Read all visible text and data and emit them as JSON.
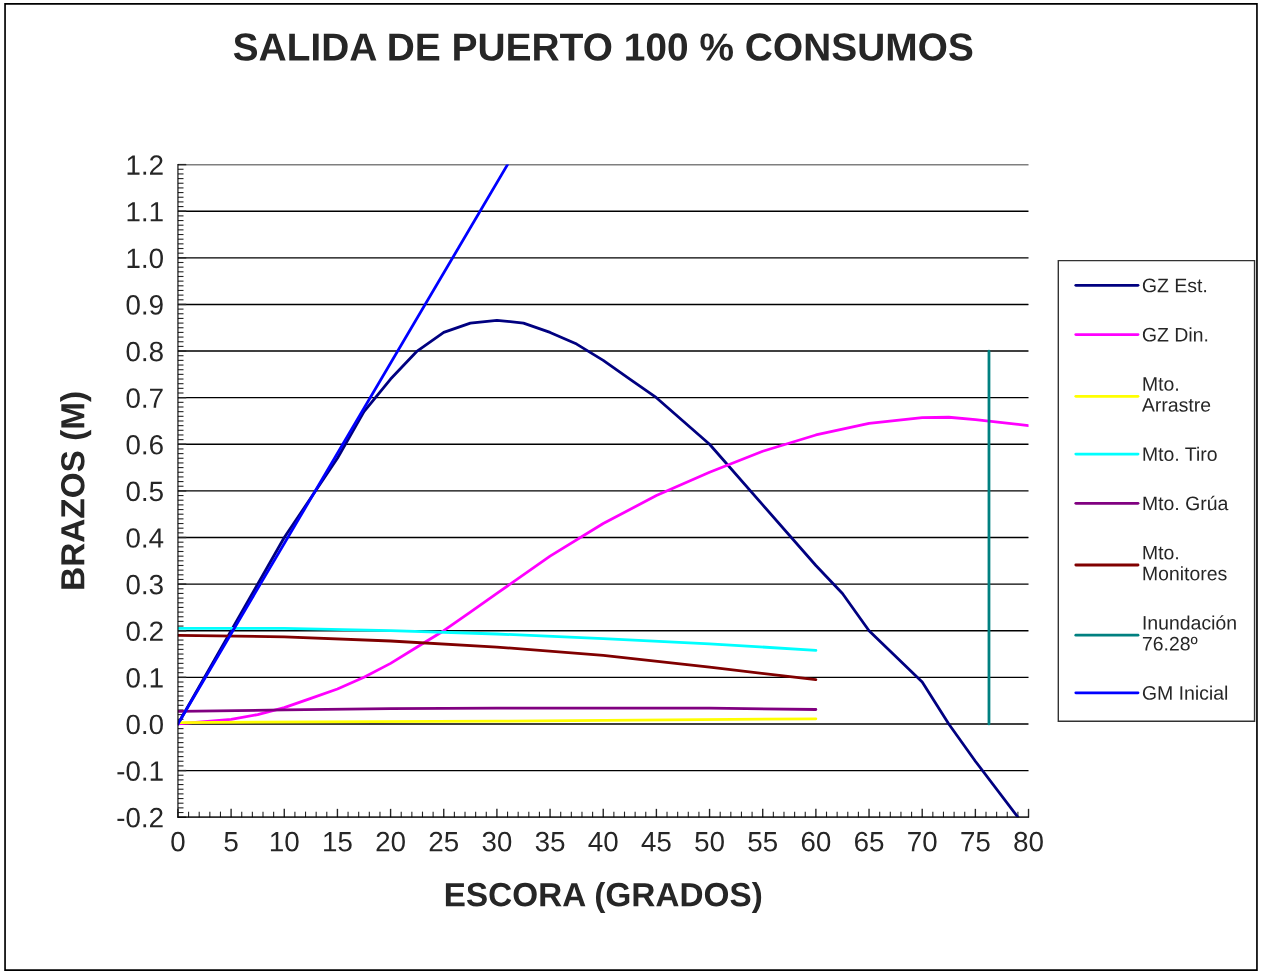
{
  "chart_data": {
    "type": "line",
    "title": "SALIDA DE PUERTO 100 % CONSUMOS",
    "xlabel": "ESCORA (GRADOS)",
    "ylabel": "BRAZOS (M)",
    "xlim": [
      0,
      80
    ],
    "xticks": [
      0,
      5,
      10,
      15,
      20,
      25,
      30,
      35,
      40,
      45,
      50,
      55,
      60,
      65,
      70,
      75,
      80
    ],
    "ylim": [
      -0.2,
      1.2
    ],
    "yticks": [
      -0.2,
      -0.1,
      {
        "value": 0,
        "label": "0.0"
      },
      0.1,
      0.2,
      0.3,
      0.4,
      0.5,
      0.6,
      0.7,
      0.8,
      0.9,
      {
        "value": 1,
        "label": "1.0"
      },
      1.1,
      1.2
    ],
    "grid": "y",
    "legend": "right",
    "line_style": "solid",
    "marker": "none",
    "series": [
      {
        "name": "GZ Est.",
        "color": "#000080",
        "x": [
          0,
          5,
          10,
          15,
          17.5,
          20,
          22.5,
          25,
          27.5,
          30,
          32.5,
          35,
          37.5,
          40,
          42.5,
          45,
          47.5,
          50,
          55,
          60,
          62.5,
          65,
          70,
          72.5,
          75,
          79
        ],
        "values": [
          0,
          0.2,
          0.4,
          0.57,
          0.67,
          0.74,
          0.8,
          0.84,
          0.86,
          0.866,
          0.86,
          0.84,
          0.815,
          0.78,
          0.74,
          0.7,
          0.65,
          0.6,
          0.47,
          0.34,
          0.28,
          0.2,
          0.09,
          0.0,
          -0.08,
          -0.2
        ]
      },
      {
        "name": "GZ Din.",
        "color": "#ff00ff",
        "x": [
          0,
          5,
          7.5,
          10,
          12.5,
          15,
          17.5,
          20,
          22.5,
          25,
          27.5,
          30,
          35,
          40,
          45,
          50,
          55,
          60,
          65,
          70,
          72.5,
          75,
          80
        ],
        "values": [
          0,
          0.01,
          0.02,
          0.035,
          0.055,
          0.075,
          0.1,
          0.13,
          0.165,
          0.2,
          0.24,
          0.28,
          0.36,
          0.43,
          0.49,
          0.54,
          0.585,
          0.62,
          0.645,
          0.657,
          0.658,
          0.653,
          0.64
        ]
      },
      {
        "name": "Mto.\nArrastre",
        "color": "#ffff00",
        "x": [
          0,
          30,
          60
        ],
        "values": [
          0.003,
          0.006,
          0.011
        ]
      },
      {
        "name": "Mto. Tiro",
        "color": "#00ffff",
        "x": [
          0,
          10,
          20,
          30,
          40,
          50,
          60
        ],
        "values": [
          0.205,
          0.205,
          0.2,
          0.193,
          0.183,
          0.172,
          0.158
        ]
      },
      {
        "name": "Mto. Grúa",
        "color": "#800080",
        "x": [
          0,
          10,
          20,
          30,
          40,
          50,
          60
        ],
        "values": [
          0.027,
          0.03,
          0.033,
          0.034,
          0.034,
          0.034,
          0.031
        ]
      },
      {
        "name": "Mto.\nMonitores",
        "color": "#800000",
        "x": [
          0,
          10,
          20,
          30,
          40,
          50,
          60
        ],
        "values": [
          0.19,
          0.187,
          0.178,
          0.165,
          0.147,
          0.122,
          0.095
        ]
      },
      {
        "name": "Inundación\n76.28º",
        "color": "#008080",
        "x": [
          76.28,
          76.28
        ],
        "values": [
          0,
          0.8
        ]
      },
      {
        "name": "GM Inicial",
        "color": "#0000ff",
        "x": [
          0,
          31
        ],
        "values": [
          0,
          1.2
        ]
      }
    ]
  }
}
